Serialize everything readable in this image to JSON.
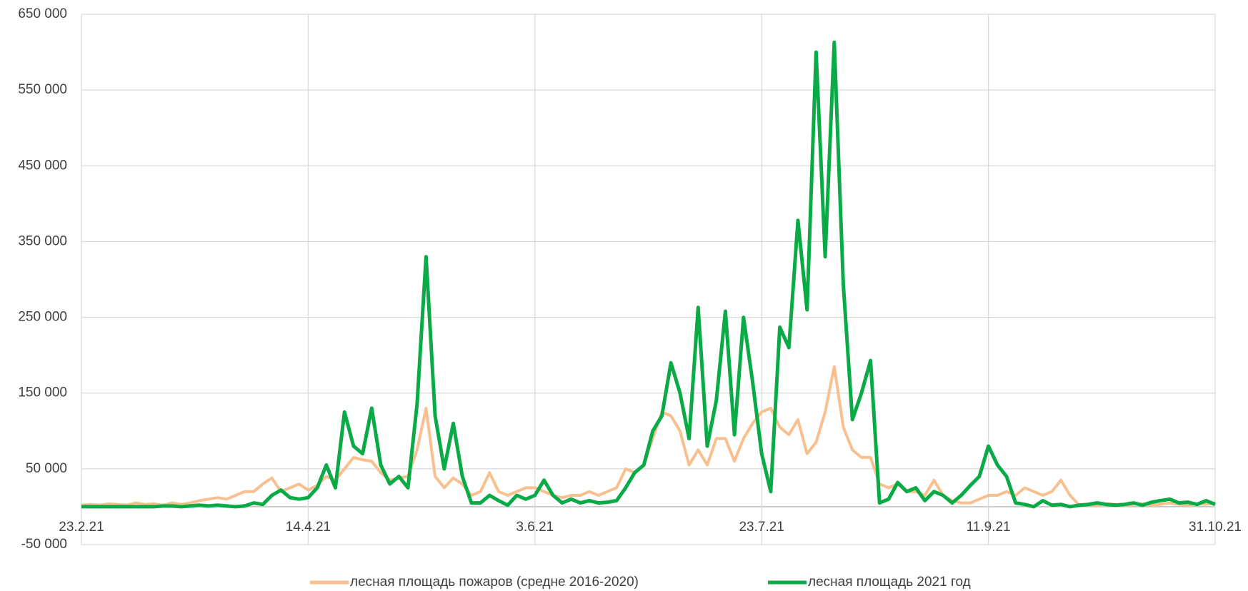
{
  "chart_data": {
    "type": "line",
    "categories": [
      "23.2.21",
      null,
      null,
      null,
      null,
      null,
      null,
      null,
      null,
      null,
      null,
      null,
      null,
      null,
      null,
      null,
      null,
      null,
      null,
      null,
      null,
      null,
      null,
      null,
      null,
      "14.4.21",
      null,
      null,
      null,
      null,
      null,
      null,
      null,
      null,
      null,
      null,
      null,
      null,
      null,
      null,
      null,
      null,
      null,
      null,
      null,
      null,
      null,
      null,
      null,
      null,
      "3.6.21",
      null,
      null,
      null,
      null,
      null,
      null,
      null,
      null,
      null,
      null,
      null,
      null,
      null,
      null,
      null,
      null,
      null,
      null,
      null,
      null,
      null,
      null,
      null,
      null,
      "23.7.21",
      null,
      null,
      null,
      null,
      null,
      null,
      null,
      null,
      null,
      null,
      null,
      null,
      null,
      null,
      null,
      null,
      null,
      null,
      null,
      null,
      null,
      null,
      null,
      null,
      "11.9.21",
      null,
      null,
      null,
      null,
      null,
      null,
      null,
      null,
      null,
      null,
      null,
      null,
      null,
      null,
      null,
      null,
      null,
      null,
      null,
      null,
      null,
      null,
      null,
      null,
      "31.10.21"
    ],
    "series": [
      {
        "name": "лесная площадь пожаров (средне 2016-2020)",
        "color": "#f8c08e",
        "values": [
          2000,
          3000,
          2000,
          4000,
          3000,
          2000,
          5000,
          3000,
          4000,
          2000,
          5000,
          3000,
          5000,
          8000,
          10000,
          12000,
          10000,
          15000,
          20000,
          20000,
          30000,
          38000,
          20000,
          25000,
          30000,
          22000,
          28000,
          40000,
          35000,
          50000,
          65000,
          62000,
          60000,
          45000,
          35000,
          38000,
          40000,
          75000,
          130000,
          40000,
          25000,
          38000,
          30000,
          15000,
          20000,
          45000,
          20000,
          15000,
          20000,
          25000,
          25000,
          20000,
          15000,
          12000,
          15000,
          15000,
          20000,
          15000,
          20000,
          25000,
          50000,
          45000,
          55000,
          90000,
          125000,
          120000,
          100000,
          55000,
          75000,
          55000,
          90000,
          90000,
          60000,
          90000,
          110000,
          125000,
          130000,
          105000,
          95000,
          115000,
          70000,
          85000,
          125000,
          185000,
          105000,
          75000,
          65000,
          65000,
          30000,
          25000,
          30000,
          20000,
          20000,
          15000,
          35000,
          15000,
          8000,
          5000,
          5000,
          10000,
          15000,
          15000,
          20000,
          15000,
          25000,
          20000,
          15000,
          20000,
          35000,
          15000,
          2000,
          3000,
          2000,
          4000,
          3000,
          2000,
          3000,
          4000,
          2000,
          3000,
          5000,
          3000,
          2000,
          4000,
          3000,
          5000
        ]
      },
      {
        "name": "лесная площадь 2021 год",
        "color": "#0aab47",
        "values": [
          0,
          0,
          0,
          0,
          0,
          0,
          0,
          0,
          0,
          1000,
          1000,
          0,
          1000,
          2000,
          1000,
          2000,
          1000,
          0,
          1000,
          5000,
          3000,
          15000,
          22000,
          12000,
          10000,
          12000,
          25000,
          55000,
          25000,
          125000,
          80000,
          70000,
          130000,
          55000,
          30000,
          40000,
          25000,
          135000,
          330000,
          120000,
          50000,
          110000,
          40000,
          5000,
          5000,
          15000,
          8000,
          2000,
          15000,
          10000,
          15000,
          35000,
          15000,
          5000,
          10000,
          5000,
          8000,
          5000,
          6000,
          8000,
          25000,
          45000,
          55000,
          100000,
          120000,
          190000,
          150000,
          90000,
          263000,
          80000,
          140000,
          258000,
          95000,
          250000,
          165000,
          70000,
          20000,
          237000,
          210000,
          378000,
          260000,
          600000,
          330000,
          613000,
          293000,
          115000,
          150000,
          193000,
          5000,
          10000,
          32000,
          20000,
          25000,
          8000,
          20000,
          15000,
          5000,
          15000,
          28000,
          40000,
          80000,
          55000,
          40000,
          5000,
          3000,
          0,
          8000,
          2000,
          3000,
          0,
          2000,
          3000,
          5000,
          3000,
          2000,
          3000,
          5000,
          2000,
          6000,
          8000,
          10000,
          5000,
          6000,
          3000,
          8000,
          3000
        ]
      }
    ],
    "ylim": [
      -50000,
      650000
    ],
    "yticks": [
      {
        "value": -50000,
        "label": "-50 000"
      },
      {
        "value": 50000,
        "label": "50 000"
      },
      {
        "value": 150000,
        "label": "150 000"
      },
      {
        "value": 250000,
        "label": "250 000"
      },
      {
        "value": 350000,
        "label": "350 000"
      },
      {
        "value": 450000,
        "label": "450 000"
      },
      {
        "value": 550000,
        "label": "550 000"
      },
      {
        "value": 650000,
        "label": "650 000"
      }
    ],
    "grid": true,
    "legend": "bottom"
  }
}
